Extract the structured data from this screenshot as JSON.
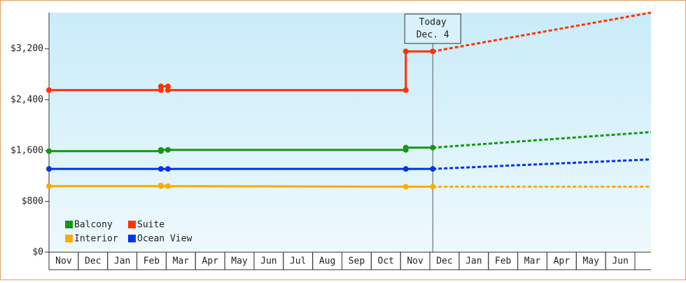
{
  "chart_data": {
    "type": "line",
    "ylim": [
      0,
      3770
    ],
    "yticks": [
      {
        "value": 0,
        "label": "$0"
      },
      {
        "value": 800,
        "label": "$800"
      },
      {
        "value": 1600,
        "label": "$1,600"
      },
      {
        "value": 2400,
        "label": "$2,400"
      },
      {
        "value": 3200,
        "label": "$3,200"
      }
    ],
    "xlim": [
      0,
      20.55
    ],
    "xticks": [
      {
        "value": 0,
        "label": "Nov"
      },
      {
        "value": 1,
        "label": "Dec"
      },
      {
        "value": 2,
        "label": "Jan"
      },
      {
        "value": 3,
        "label": "Feb"
      },
      {
        "value": 4,
        "label": "Mar"
      },
      {
        "value": 5,
        "label": "Apr"
      },
      {
        "value": 6,
        "label": "May"
      },
      {
        "value": 7,
        "label": "Jun"
      },
      {
        "value": 8,
        "label": "Jul"
      },
      {
        "value": 9,
        "label": "Aug"
      },
      {
        "value": 10,
        "label": "Sep"
      },
      {
        "value": 11,
        "label": "Oct"
      },
      {
        "value": 12,
        "label": "Nov"
      },
      {
        "value": 13,
        "label": "Dec"
      },
      {
        "value": 14,
        "label": "Jan"
      },
      {
        "value": 15,
        "label": "Feb"
      },
      {
        "value": 16,
        "label": "Mar"
      },
      {
        "value": 17,
        "label": "Apr"
      },
      {
        "value": 18,
        "label": "May"
      },
      {
        "value": 19,
        "label": "Jun"
      }
    ],
    "annotation": {
      "x": 13.1,
      "lines": [
        "Today",
        "Dec. 4"
      ]
    },
    "series": [
      {
        "name": "Balcony",
        "color": "#119911",
        "x": [
          0,
          3.82,
          3.82,
          4.06,
          12.18,
          12.18,
          13.1
        ],
        "values": [
          1590,
          1590,
          1610,
          1610,
          1610,
          1645,
          1645
        ],
        "forecast": {
          "x": [
            13.1,
            20.55
          ],
          "values": [
            1645,
            1890
          ]
        }
      },
      {
        "name": "Suite",
        "color": "#ff3300",
        "x": [
          0,
          3.82,
          3.82,
          4.06,
          4.06,
          12.18,
          12.18,
          13.1
        ],
        "values": [
          2550,
          2550,
          2610,
          2610,
          2550,
          2550,
          3160,
          3160
        ],
        "forecast": {
          "x": [
            13.1,
            20.55
          ],
          "values": [
            3160,
            3770
          ]
        }
      },
      {
        "name": "Interior",
        "color": "#ffaa00",
        "x": [
          0,
          3.82,
          3.82,
          4.06,
          12.18,
          13.1
        ],
        "values": [
          1040,
          1040,
          1050,
          1040,
          1030,
          1030
        ],
        "forecast": {
          "x": [
            13.1,
            20.55
          ],
          "values": [
            1030,
            1030
          ]
        }
      },
      {
        "name": "Ocean View",
        "color": "#0033ee",
        "x": [
          0,
          3.82,
          4.06,
          12.18,
          13.1
        ],
        "values": [
          1310,
          1310,
          1310,
          1310,
          1310
        ],
        "forecast": {
          "x": [
            13.1,
            20.55
          ],
          "values": [
            1310,
            1460
          ]
        }
      }
    ]
  }
}
